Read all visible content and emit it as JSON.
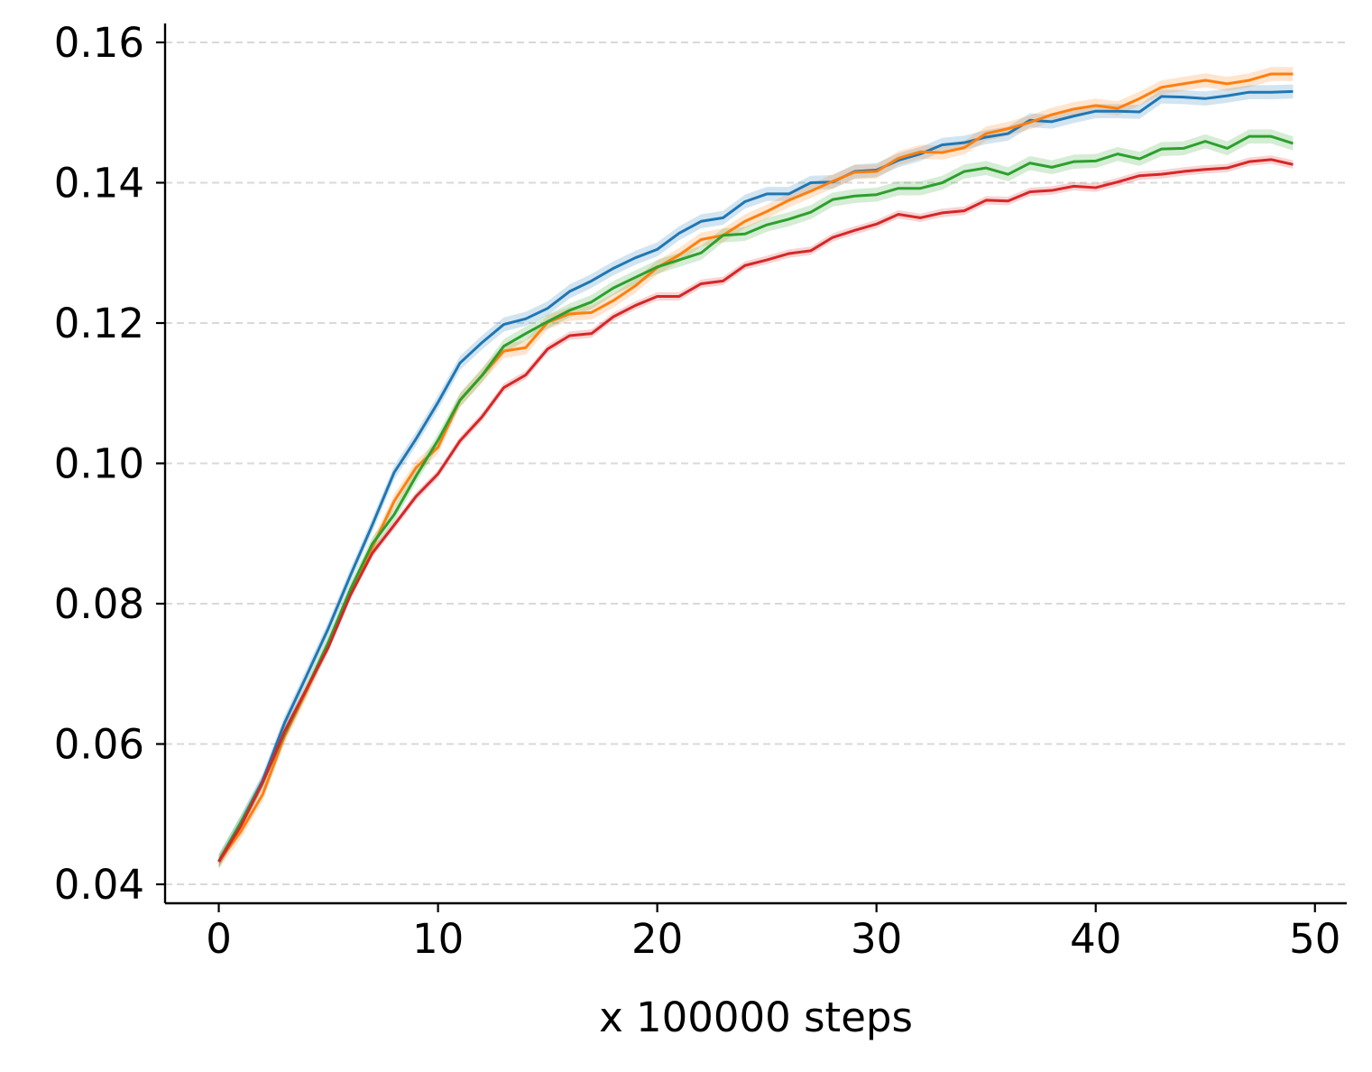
{
  "chart_data": {
    "type": "line",
    "title": "",
    "xlabel": "x 100000 steps",
    "ylabel": "",
    "xlim": [
      -2.45,
      51.45
    ],
    "ylim": [
      0.0373,
      0.1627
    ],
    "xticks": [
      0,
      10,
      20,
      30,
      40,
      50
    ],
    "xtick_labels": [
      "0",
      "10",
      "20",
      "30",
      "40",
      "50"
    ],
    "yticks": [
      0.04,
      0.06,
      0.08,
      0.1,
      0.12,
      0.14,
      0.16
    ],
    "ytick_labels": [
      "0.04",
      "0.06",
      "0.08",
      "0.10",
      "0.12",
      "0.14",
      "0.16"
    ],
    "grid": "horizontal dashed",
    "legend": "none",
    "shaded_band": "yes",
    "x": [
      0,
      1,
      2,
      3,
      4,
      5,
      6,
      7,
      8,
      9,
      10,
      11,
      12,
      13,
      14,
      15,
      16,
      17,
      18,
      19,
      20,
      21,
      22,
      23,
      24,
      25,
      26,
      27,
      28,
      29,
      30,
      31,
      32,
      33,
      34,
      35,
      36,
      37,
      38,
      39,
      40,
      41,
      42,
      43,
      44,
      45,
      46,
      47,
      48,
      49
    ],
    "series": [
      {
        "color": "#1f77b4",
        "values": [
          0.0433,
          0.0488,
          0.0548,
          0.063,
          0.0697,
          0.0765,
          0.084,
          0.0912,
          0.0987,
          0.1035,
          0.1087,
          0.1143,
          0.1172,
          0.1198,
          0.1206,
          0.1221,
          0.1245,
          0.126,
          0.1278,
          0.1293,
          0.1305,
          0.1328,
          0.1345,
          0.135,
          0.1373,
          0.1384,
          0.1384,
          0.14,
          0.1401,
          0.1416,
          0.1418,
          0.1432,
          0.1441,
          0.1454,
          0.1457,
          0.1465,
          0.147,
          0.1489,
          0.1487,
          0.1495,
          0.1502,
          0.1502,
          0.1501,
          0.1523,
          0.1522,
          0.152,
          0.1524,
          0.1529,
          0.1529,
          0.153
        ],
        "band": 0.001
      },
      {
        "color": "#ff7f0e",
        "values": [
          0.0432,
          0.0475,
          0.0528,
          0.0611,
          0.0675,
          0.0742,
          0.0816,
          0.088,
          0.0946,
          0.0994,
          0.1023,
          0.109,
          0.1125,
          0.116,
          0.1165,
          0.1201,
          0.1213,
          0.1215,
          0.1232,
          0.1253,
          0.1279,
          0.1297,
          0.1319,
          0.1325,
          0.1345,
          0.1359,
          0.1375,
          0.1388,
          0.1402,
          0.1415,
          0.1416,
          0.1435,
          0.1444,
          0.1443,
          0.145,
          0.147,
          0.1477,
          0.1486,
          0.1497,
          0.1505,
          0.151,
          0.1506,
          0.152,
          0.1536,
          0.1541,
          0.1546,
          0.1541,
          0.1546,
          0.1555,
          0.1555
        ],
        "band": 0.001
      },
      {
        "color": "#2ca02c",
        "values": [
          0.0433,
          0.0488,
          0.0545,
          0.0615,
          0.0678,
          0.0745,
          0.082,
          0.0885,
          0.0927,
          0.0982,
          0.1033,
          0.109,
          0.1125,
          0.1167,
          0.1185,
          0.1202,
          0.1218,
          0.123,
          0.125,
          0.1265,
          0.128,
          0.129,
          0.13,
          0.1325,
          0.1327,
          0.134,
          0.1348,
          0.1358,
          0.1376,
          0.1381,
          0.1383,
          0.1392,
          0.1392,
          0.14,
          0.1416,
          0.1421,
          0.1412,
          0.1428,
          0.1422,
          0.143,
          0.1431,
          0.1441,
          0.1434,
          0.1448,
          0.1449,
          0.1459,
          0.1449,
          0.1466,
          0.1466,
          0.1456
        ],
        "band": 0.001
      },
      {
        "color": "#d62728",
        "values": [
          0.0432,
          0.0483,
          0.0545,
          0.0618,
          0.0678,
          0.0738,
          0.0812,
          0.0872,
          0.0912,
          0.0953,
          0.0985,
          0.1032,
          0.1066,
          0.1108,
          0.1126,
          0.1163,
          0.1182,
          0.1185,
          0.1209,
          0.1225,
          0.1238,
          0.1238,
          0.1256,
          0.126,
          0.1282,
          0.129,
          0.1299,
          0.1303,
          0.1322,
          0.1332,
          0.1341,
          0.1355,
          0.135,
          0.1357,
          0.136,
          0.1375,
          0.1374,
          0.1387,
          0.1389,
          0.1395,
          0.1393,
          0.1401,
          0.141,
          0.1412,
          0.1416,
          0.1419,
          0.1421,
          0.143,
          0.1433,
          0.1426
        ],
        "band": 0.0006
      }
    ]
  }
}
